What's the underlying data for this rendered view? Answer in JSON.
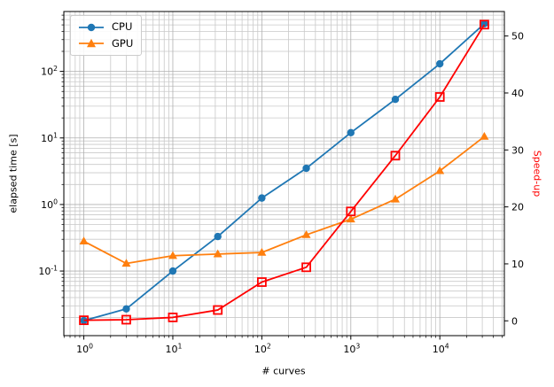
{
  "chart_data": {
    "type": "line",
    "title": "",
    "xlabel": "# curves",
    "ylabel_left": "elapsed time [s]",
    "ylabel_right": "Speed-up",
    "ylabel_right_color": "#ff0000",
    "x_scale": "log",
    "y_left_scale": "log",
    "y_right_scale": "linear",
    "x_lim": [
      0.596,
      53100
    ],
    "y_left_lim": [
      0.0107,
      794
    ],
    "y_right_lim": [
      -2.6,
      54.3
    ],
    "x_ticks": [
      {
        "value": 1,
        "label": "10^0"
      },
      {
        "value": 10,
        "label": "10^1"
      },
      {
        "value": 100,
        "label": "10^2"
      },
      {
        "value": 1000,
        "label": "10^3"
      },
      {
        "value": 10000,
        "label": "10^4"
      }
    ],
    "y_left_ticks": [
      {
        "value": 0.1,
        "label": "10^-1"
      },
      {
        "value": 1,
        "label": "10^0"
      },
      {
        "value": 10,
        "label": "10^1"
      },
      {
        "value": 100,
        "label": "10^2"
      }
    ],
    "y_right_ticks": [
      {
        "value": 0,
        "label": "0"
      },
      {
        "value": 10,
        "label": "10"
      },
      {
        "value": 20,
        "label": "20"
      },
      {
        "value": 30,
        "label": "30"
      },
      {
        "value": 40,
        "label": "40"
      },
      {
        "value": 50,
        "label": "50"
      }
    ],
    "x": [
      1,
      3,
      10,
      32,
      100,
      316,
      1000,
      3162,
      10000,
      31623
    ],
    "series": [
      {
        "name": "CPU",
        "axis": "left",
        "color": "#1f77b4",
        "marker": "circle",
        "values": [
          0.018,
          0.027,
          0.1,
          0.33,
          1.25,
          3.5,
          12,
          38,
          130,
          520
        ]
      },
      {
        "name": "GPU",
        "axis": "left",
        "color": "#ff7f0e",
        "marker": "triangle",
        "values": [
          0.28,
          0.13,
          0.17,
          0.18,
          0.19,
          0.35,
          0.6,
          1.2,
          3.2,
          10.5
        ]
      },
      {
        "name": "Speed-up",
        "axis": "right",
        "color": "#ff0000",
        "marker": "square-open",
        "values": [
          0.1,
          0.2,
          0.6,
          1.9,
          6.8,
          9.4,
          19.2,
          29,
          39.3,
          52
        ]
      }
    ],
    "legend": {
      "position": "upper-left",
      "entries": [
        "CPU",
        "GPU"
      ]
    },
    "grid": {
      "which": "both",
      "major_color": "#b0b0b0",
      "minor_color": "#c9c9c9"
    }
  }
}
